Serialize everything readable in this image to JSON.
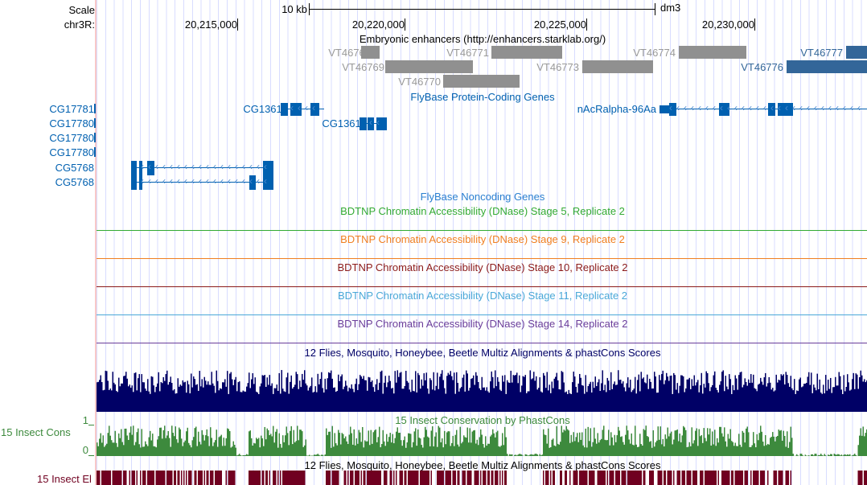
{
  "ruler": {
    "scale_label": "Scale",
    "chrom_label": "chr3R:",
    "scale_bar": "10 kb",
    "assembly": "dm3",
    "ticks": [
      "20,215,000",
      "20,220,000",
      "20,225,000",
      "20,230,000"
    ]
  },
  "enhancers": {
    "title": "Embryonic enhancers (http://enhancers.starklab.org/)",
    "items": [
      "VT46768",
      "VT46769",
      "VT46770",
      "VT46771",
      "VT46773",
      "VT46774",
      "VT46776",
      "VT46777"
    ]
  },
  "protein_genes": {
    "title": "FlyBase Protein-Coding Genes",
    "left_labels": [
      "CG17781",
      "CG17780",
      "CG17780",
      "CG17780"
    ],
    "genes": [
      "CG13615",
      "CG13616",
      "nAcRalpha-96Aa",
      "CG5768",
      "CG5768"
    ]
  },
  "noncoding_title": "FlyBase Noncoding Genes",
  "dnase_tracks": [
    {
      "title": "BDTNP Chromatin Accessibility (DNase) Stage 5, Replicate 2",
      "color": "#33aa33"
    },
    {
      "title": "BDTNP Chromatin Accessibility (DNase) Stage 9, Replicate 2",
      "color": "#f07f20"
    },
    {
      "title": "BDTNP Chromatin Accessibility (DNase) Stage 10, Replicate 2",
      "color": "#8b1a1a"
    },
    {
      "title": "BDTNP Chromatin Accessibility (DNase) Stage 11, Replicate 2",
      "color": "#4aa8d8"
    },
    {
      "title": "BDTNP Chromatin Accessibility (DNase) Stage 14, Replicate 2",
      "color": "#6a3d9a"
    }
  ],
  "multiz": {
    "title": "12 Flies, Mosquito, Honeybee, Beetle Multiz Alignments & phastCons Scores",
    "color": "#000066"
  },
  "cons": {
    "title": "15 Insect Conservation by PhastCons",
    "left_label": "15 Insect Cons",
    "axis_max": "1",
    "axis_min": "0",
    "color": "#3d8a3d"
  },
  "elements": {
    "title": "12 Flies, Mosquito, Honeybee, Beetle Multiz Alignments & phastCons Scores",
    "left_label": "15 Insect El",
    "color": "#700020"
  }
}
